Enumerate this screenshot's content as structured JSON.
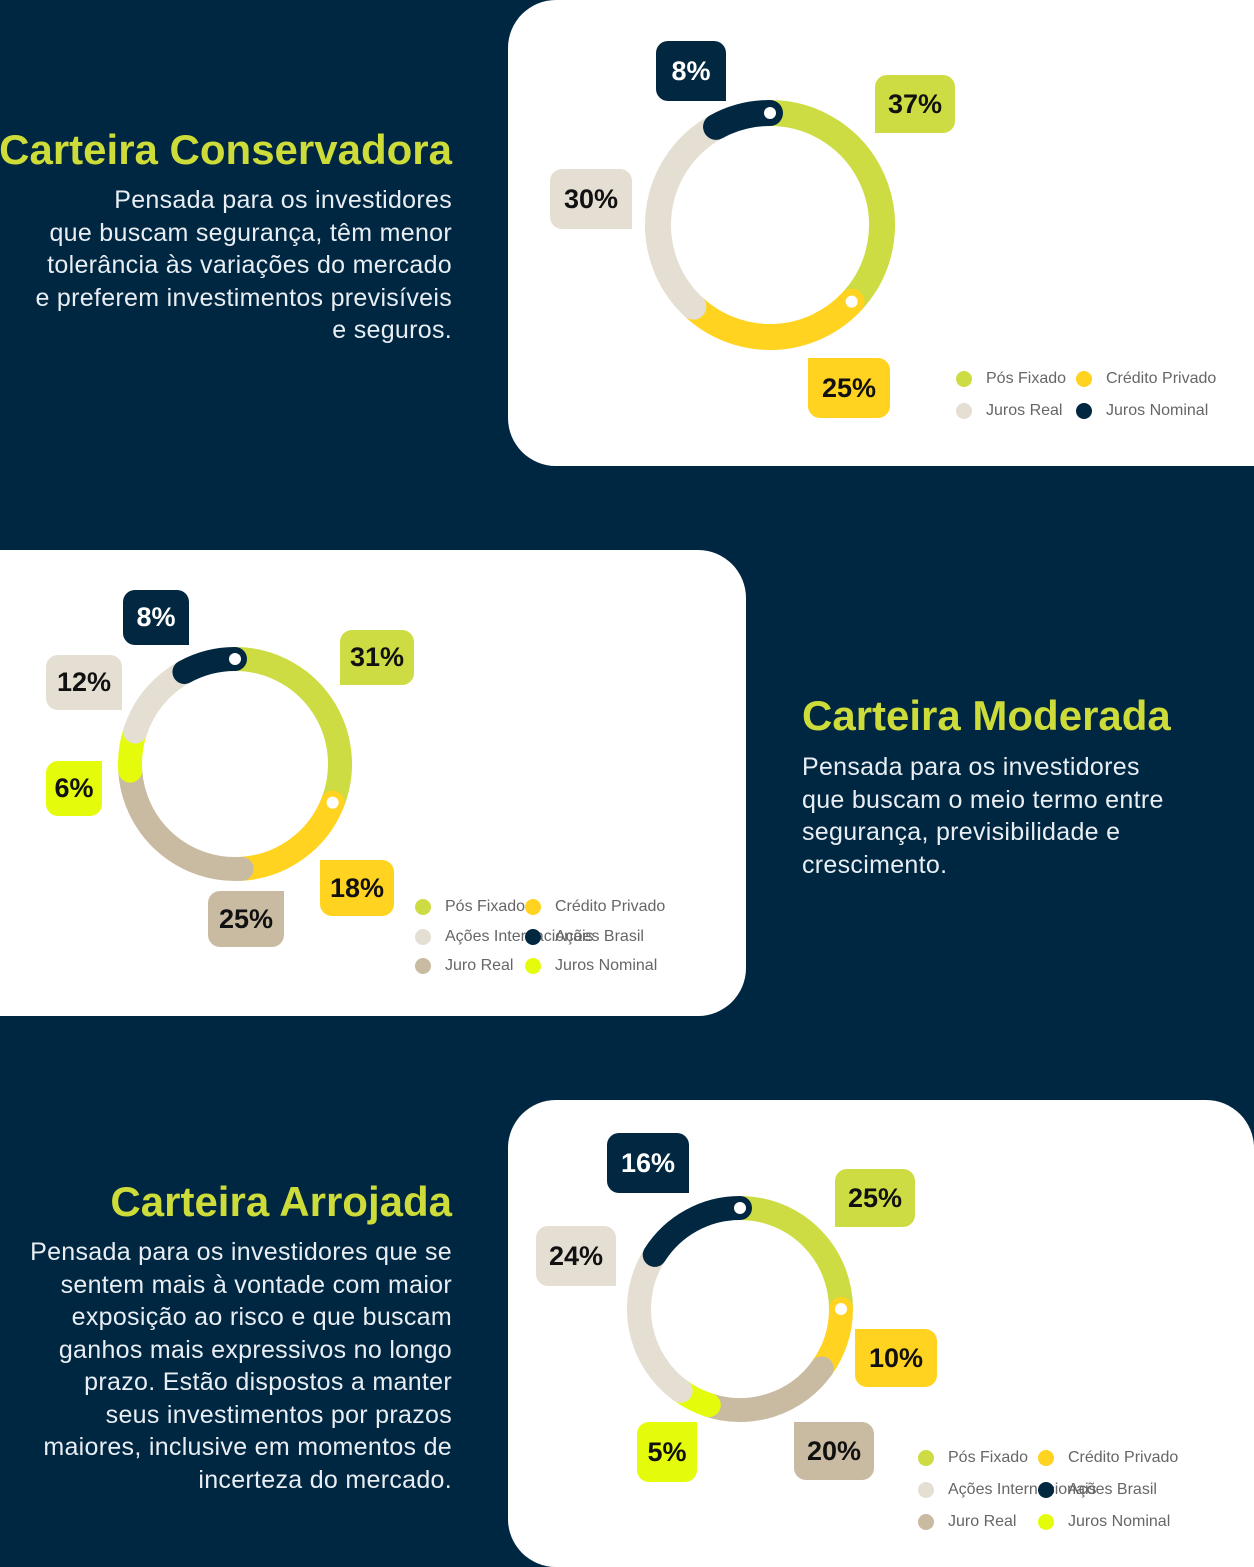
{
  "colors": {
    "background": "#002741",
    "heading": "#cddc39",
    "pos_fixado": "#cddc42",
    "credito_privado": "#ffd31f",
    "acoes_internacionais": "#e5dfd3",
    "acoes_brasil": "#012741",
    "juro_real": "#c9bba1",
    "juros_nominal": "#e4fc0c"
  },
  "sections": [
    {
      "title": "Carteira Conservadora",
      "description": [
        "Pensada para os investidores",
        "que buscam segurança, têm menor",
        "tolerância às variações do mercado",
        "e preferem investimentos previsíveis",
        "e seguros."
      ],
      "legend": [
        {
          "label": "Pós Fixado",
          "color": "#cddc42"
        },
        {
          "label": "Crédito Privado",
          "color": "#ffd31f"
        },
        {
          "label": "Juros Real",
          "color": "#e5dfd3"
        },
        {
          "label": "Juros Nominal",
          "color": "#012741"
        }
      ],
      "labels": [
        "37%",
        "25%",
        "30%",
        "8%"
      ]
    },
    {
      "title": "Carteira Moderada",
      "description": [
        "Pensada para os investidores",
        "que buscam o meio termo entre",
        "segurança, previsibilidade e",
        "crescimento."
      ],
      "legend": [
        {
          "label": "Pós Fixado",
          "color": "#cddc42"
        },
        {
          "label": "Crédito Privado",
          "color": "#ffd31f"
        },
        {
          "label": "Ações Internacionais",
          "color": "#e5dfd3"
        },
        {
          "label": "Ações Brasil",
          "color": "#012741"
        },
        {
          "label": "Juro Real",
          "color": "#c9bba1"
        },
        {
          "label": "Juros Nominal",
          "color": "#e4fc0c"
        }
      ],
      "labels": [
        "31%",
        "18%",
        "25%",
        "6%",
        "12%",
        "8%"
      ]
    },
    {
      "title": "Carteira Arrojada",
      "description": [
        "Pensada para os investidores que se",
        "sentem mais à vontade com maior",
        "exposição ao risco e que buscam",
        "ganhos mais expressivos no longo",
        "prazo. Estão dispostos a manter",
        "seus investimentos por prazos",
        "maiores, inclusive em momentos de",
        "incerteza do mercado."
      ],
      "legend": [
        {
          "label": "Pós Fixado",
          "color": "#cddc42"
        },
        {
          "label": "Crédito Privado",
          "color": "#ffd31f"
        },
        {
          "label": "Ações Internacionais",
          "color": "#e5dfd3"
        },
        {
          "label": "Ações Brasil",
          "color": "#012741"
        },
        {
          "label": "Juro Real",
          "color": "#c9bba1"
        },
        {
          "label": "Juros Nominal",
          "color": "#e4fc0c"
        }
      ],
      "labels": [
        "25%",
        "10%",
        "20%",
        "5%",
        "24%",
        "16%"
      ]
    }
  ],
  "chart_data": [
    {
      "type": "pie",
      "title": "Carteira Conservadora",
      "categories": [
        "Pós Fixado",
        "Crédito Privado",
        "Juros Real",
        "Juros Nominal"
      ],
      "values": [
        37,
        25,
        30,
        8
      ],
      "colors": [
        "#cddc42",
        "#ffd31f",
        "#e5dfd3",
        "#012741"
      ],
      "legend": "bottom-right"
    },
    {
      "type": "pie",
      "title": "Carteira Moderada",
      "categories": [
        "Pós Fixado",
        "Crédito Privado",
        "Juro Real",
        "Juros Nominal",
        "Ações Internacionais",
        "Ações Brasil"
      ],
      "values": [
        31,
        18,
        25,
        6,
        12,
        8
      ],
      "colors": [
        "#cddc42",
        "#ffd31f",
        "#c9bba1",
        "#e4fc0c",
        "#e5dfd3",
        "#012741"
      ],
      "legend": "bottom-right"
    },
    {
      "type": "pie",
      "title": "Carteira Arrojada",
      "categories": [
        "Pós Fixado",
        "Crédito Privado",
        "Juro Real",
        "Juros Nominal",
        "Ações Internacionais",
        "Ações Brasil"
      ],
      "values": [
        25,
        10,
        20,
        5,
        24,
        16
      ],
      "colors": [
        "#cddc42",
        "#ffd31f",
        "#c9bba1",
        "#e4fc0c",
        "#e5dfd3",
        "#012741"
      ],
      "legend": "bottom-right"
    }
  ]
}
